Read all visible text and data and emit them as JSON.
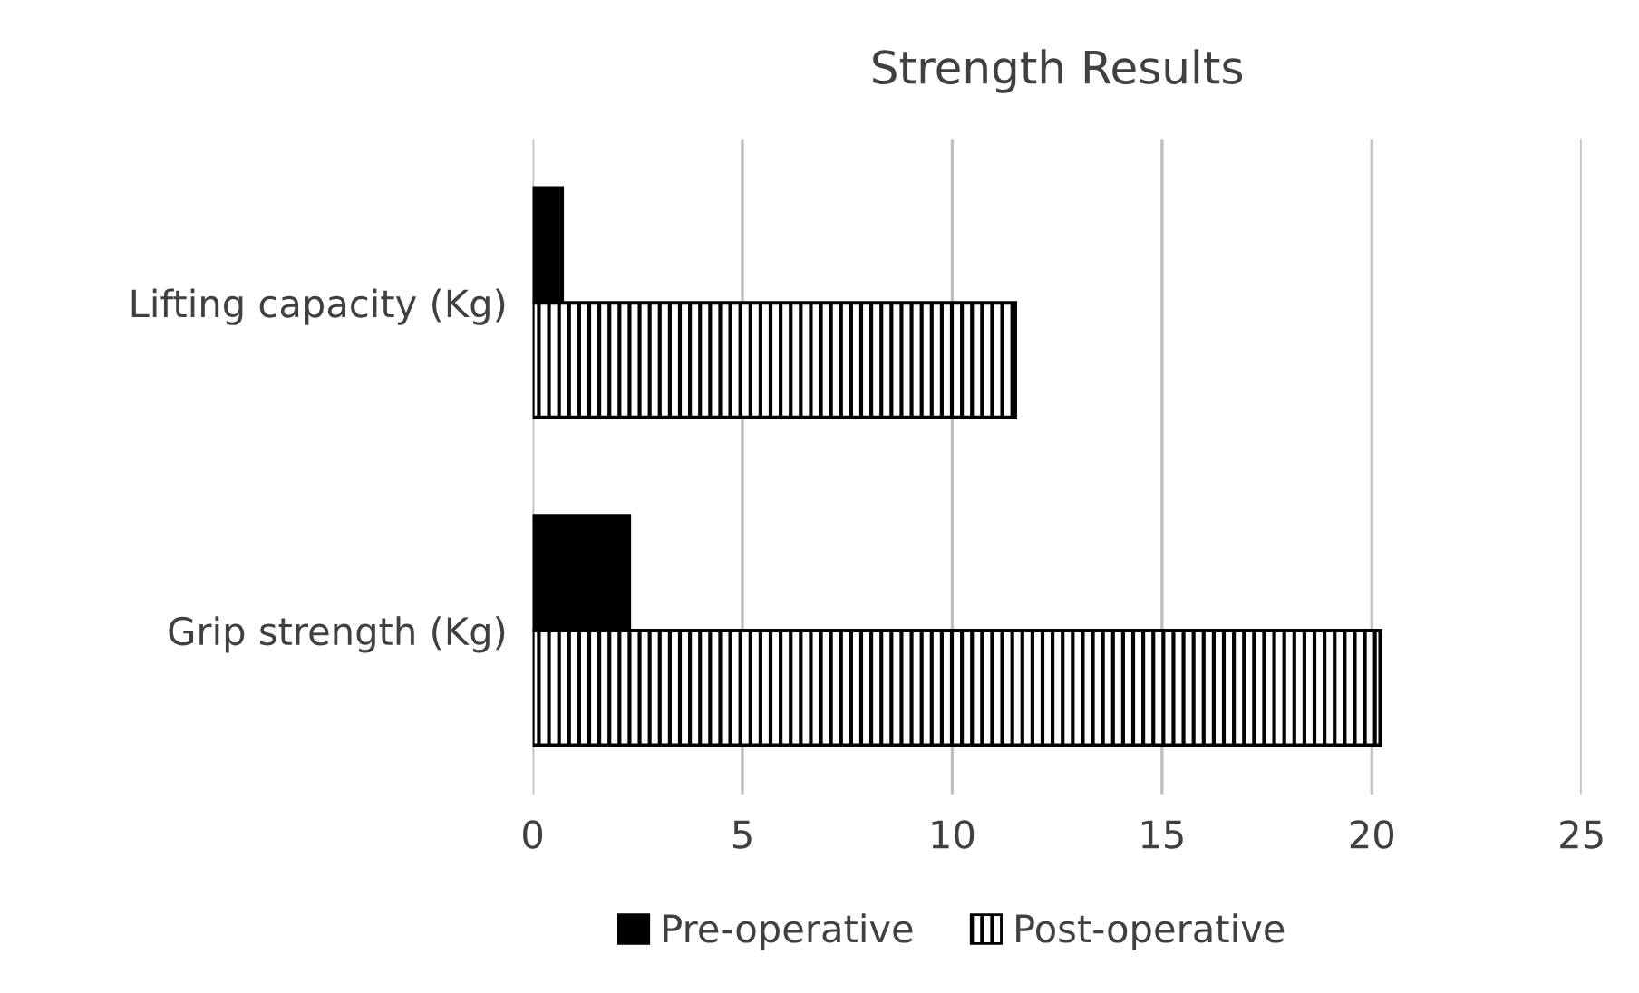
{
  "chart_data": {
    "type": "bar",
    "orientation": "horizontal",
    "title": "Strength Results",
    "categories": [
      "Lifting capacity (Kg)",
      "Grip strength (Kg)"
    ],
    "series": [
      {
        "name": "Pre-operative",
        "color": "#000000",
        "values": [
          0.7,
          2.3
        ]
      },
      {
        "name": "Post-operative",
        "color": "#000000",
        "values": [
          11.5,
          20.2
        ]
      }
    ],
    "xlim": [
      0,
      25
    ],
    "xticks": [
      0,
      5,
      10,
      15,
      20,
      25
    ],
    "grid": "x",
    "legend": "bottom"
  }
}
